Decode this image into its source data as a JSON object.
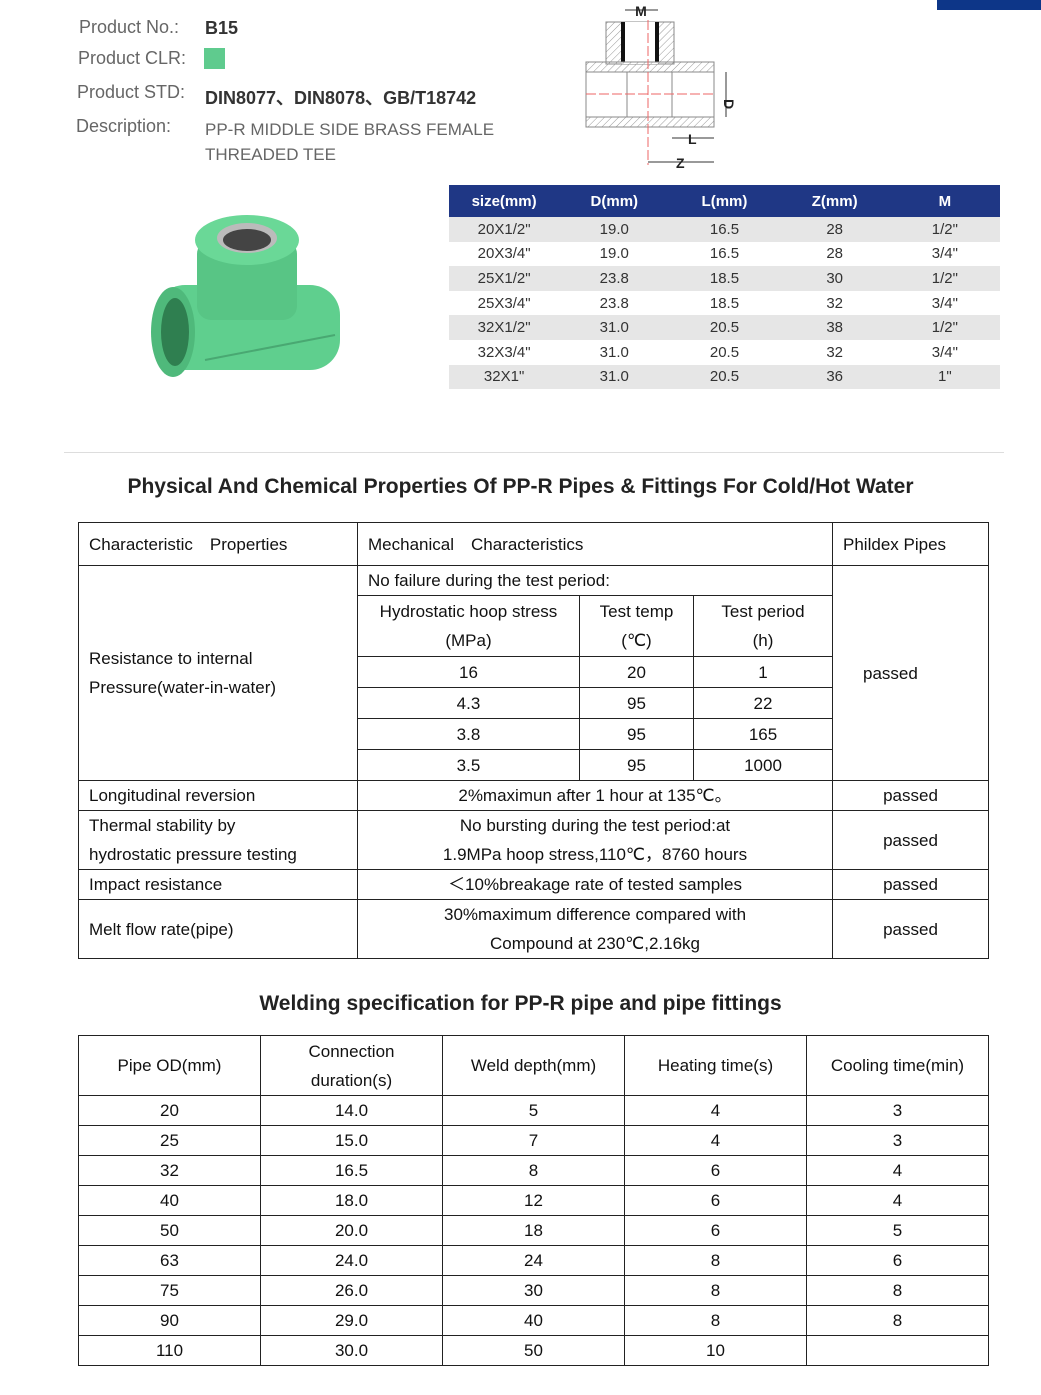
{
  "product": {
    "no_label": "Product No.:",
    "no": "B15",
    "clr_label": "Product CLR:",
    "color": "#5fcb8e",
    "std_label": "Product STD:",
    "std": "DIN8077、DIN8078、GB/T18742",
    "desc_label": "Description:",
    "desc_line1": "PP-R MIDDLE SIDE BRASS FEMALE",
    "desc_line2": "THREADED TEE"
  },
  "diagram": {
    "labels": {
      "m": "M",
      "d": "D",
      "l": "L",
      "z": "Z"
    }
  },
  "spec_table": {
    "headers": [
      "size(mm)",
      "D(mm)",
      "L(mm)",
      "Z(mm)",
      "M"
    ],
    "rows": [
      [
        "20X1/2\"",
        "19.0",
        "16.5",
        "28",
        "1/2\""
      ],
      [
        "20X3/4\"",
        "19.0",
        "16.5",
        "28",
        "3/4\""
      ],
      [
        "25X1/2\"",
        "23.8",
        "18.5",
        "30",
        "1/2\""
      ],
      [
        "25X3/4\"",
        "23.8",
        "18.5",
        "32",
        "3/4\""
      ],
      [
        "32X1/2\"",
        "31.0",
        "20.5",
        "38",
        "1/2\""
      ],
      [
        "32X3/4\"",
        "31.0",
        "20.5",
        "32",
        "3/4\""
      ],
      [
        "32X1\"",
        "31.0",
        "20.5",
        "36",
        "1\""
      ]
    ]
  },
  "phys": {
    "title": "Physical And Chemical Properties Of PP-R Pipes & Fittings For Cold/Hot Water",
    "h1": "Characteristic　Properties",
    "h2": "Mechanical　Characteristics",
    "h3": "Phildex Pipes",
    "r1_label_line1": "Resistance to internal",
    "r1_label_line2": "Pressure(water-in-water)",
    "no_failure": "No failure during the test period:",
    "sub1a": "Hydrostatic hoop stress",
    "sub1b": "(MPa)",
    "sub2a": "Test temp",
    "sub2b": "(℃)",
    "sub3a": "Test period",
    "sub3b": "(h)",
    "r1_result": "passed",
    "pressure_rows": [
      [
        "16",
        "20",
        "1"
      ],
      [
        "4.3",
        "95",
        "22"
      ],
      [
        "3.8",
        "95",
        "165"
      ],
      [
        "3.5",
        "95",
        "1000"
      ]
    ],
    "rows": [
      {
        "label": [
          "Longitudinal reversion"
        ],
        "text": [
          "2%maximun after 1 hour at 135℃。"
        ],
        "result": "passed"
      },
      {
        "label": [
          "Thermal stability by",
          "hydrostatic pressure testing"
        ],
        "text": [
          "No bursting during the test period:at",
          "1.9MPa hoop stress,110℃，8760 hours"
        ],
        "result": "passed"
      },
      {
        "label": [
          "Impact resistance"
        ],
        "text": [
          "＜10%breakage rate of tested samples"
        ],
        "result": "passed"
      },
      {
        "label": [
          "Melt flow rate(pipe)"
        ],
        "text": [
          "30%maximum difference compared with",
          "Compound at 230℃,2.16kg"
        ],
        "result": "passed"
      }
    ]
  },
  "weld": {
    "title": "Welding specification for PP-R pipe and pipe fittings",
    "headers": [
      [
        "Pipe OD(mm)"
      ],
      [
        "Connection",
        "duration(s)"
      ],
      [
        "Weld depth(mm)"
      ],
      [
        "Heating time(s)"
      ],
      [
        "Cooling time(min)"
      ]
    ],
    "rows": [
      [
        "20",
        "14.0",
        "5",
        "4",
        "3"
      ],
      [
        "25",
        "15.0",
        "7",
        "4",
        "3"
      ],
      [
        "32",
        "16.5",
        "8",
        "6",
        "4"
      ],
      [
        "40",
        "18.0",
        "12",
        "6",
        "4"
      ],
      [
        "50",
        "20.0",
        "18",
        "6",
        "5"
      ],
      [
        "63",
        "24.0",
        "24",
        "8",
        "6"
      ],
      [
        "75",
        "26.0",
        "30",
        "8",
        "8"
      ],
      [
        "90",
        "29.0",
        "40",
        "8",
        "8"
      ],
      [
        "110",
        "30.0",
        "50",
        "10",
        ""
      ]
    ]
  }
}
